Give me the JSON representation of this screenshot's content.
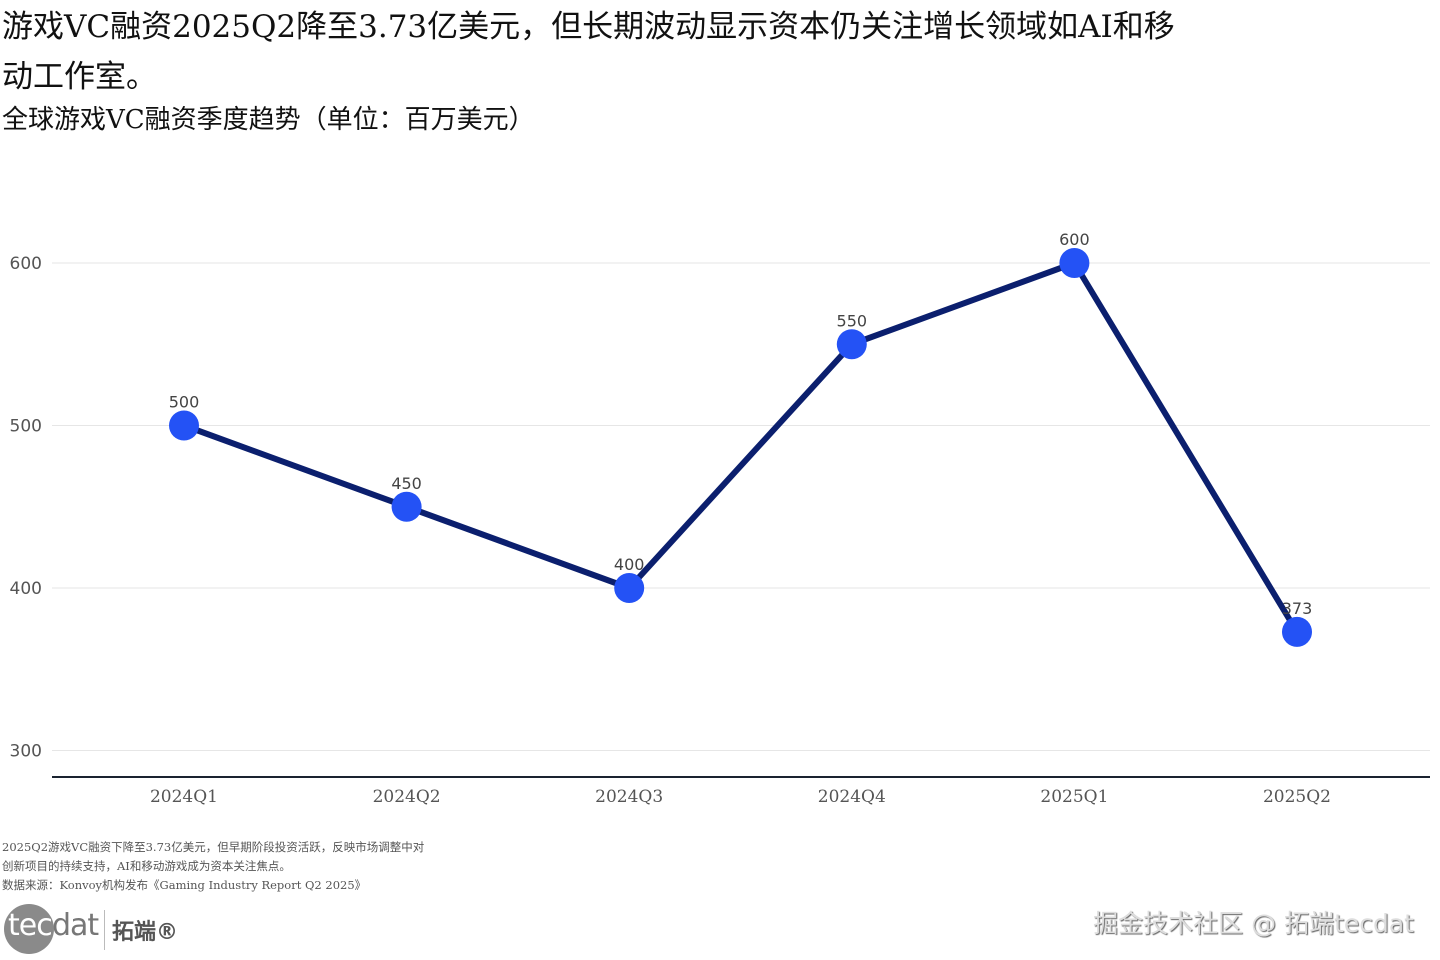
{
  "title": "游戏VC融资2025Q2降至3.73亿美元，但长期波动显示资本仍关注增长领域如AI和移动工作室。",
  "chart_data": {
    "type": "line",
    "title": "全球游戏VC融资季度趋势（单位：百万美元）",
    "xlabel": "",
    "ylabel": "",
    "categories": [
      "2024Q1",
      "2024Q2",
      "2024Q3",
      "2024Q4",
      "2025Q1",
      "2025Q2"
    ],
    "values": [
      500,
      450,
      400,
      550,
      600,
      373
    ],
    "data_labels": [
      "500",
      "450",
      "400",
      "550",
      "600",
      "373"
    ],
    "yticks": [
      300,
      400,
      500,
      600
    ],
    "ylim": [
      283,
      640
    ],
    "grid": "horizontal",
    "line_color": "#0b1f6e",
    "marker_color": "#2452f5"
  },
  "note": {
    "lines": [
      "2025Q2游戏VC融资下降至3.73亿美元，但早期阶段投资活跃，反映市场调整中对",
      "创新项目的持续支持，AI和移动游戏成为资本关注焦点。",
      "数据来源：Konvoy机构发布《Gaming Industry Report Q2 2025》"
    ]
  },
  "logo": {
    "tec": "tec",
    "dat": "dat",
    "cn": "拓端®"
  },
  "watermark": "掘金技术社区 @ 拓端tecdat"
}
